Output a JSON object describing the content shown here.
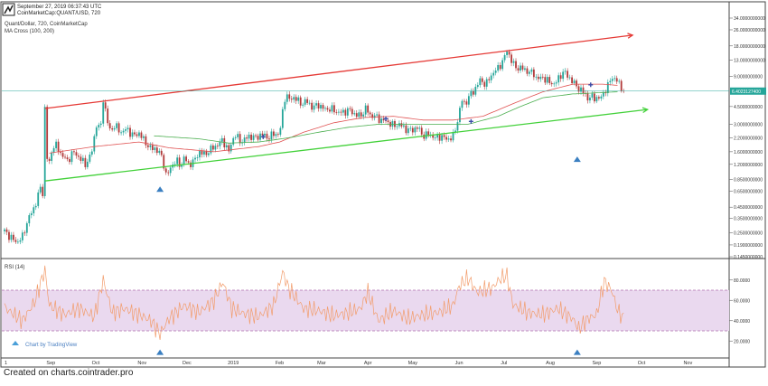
{
  "header": {
    "timestamp": "September 27, 2019 06:37:43 UTC",
    "symbol": "CoinMarketCap:QUANT/USD, 720",
    "logo_icon": "tradingview-logo-icon"
  },
  "price_pane": {
    "series_title": "Quant/Dollar, 720, CoinMarketCap",
    "indicator_title": "MA Cross (100, 200)",
    "current_price_label": "6.4023127400",
    "current_price": 6.4023,
    "y_ticks": [
      {
        "value": 34,
        "label": "34.0000000000"
      },
      {
        "value": 26,
        "label": "26.0000000000"
      },
      {
        "value": 18,
        "label": "18.0000000000"
      },
      {
        "value": 13,
        "label": "13.0000000000"
      },
      {
        "value": 9,
        "label": "9.0000000000"
      },
      {
        "value": 6.4023,
        "label": "6.4023127400"
      },
      {
        "value": 4.5,
        "label": "4.5000000000"
      },
      {
        "value": 3,
        "label": "3.0000000000"
      },
      {
        "value": 2.2,
        "label": "2.2000000000"
      },
      {
        "value": 1.6,
        "label": "1.6000000000"
      },
      {
        "value": 1.2,
        "label": "1.2000000000"
      },
      {
        "value": 0.85,
        "label": "0.8500000000"
      },
      {
        "value": 0.65,
        "label": "0.6500000000"
      },
      {
        "value": 0.45,
        "label": "0.4500000000"
      },
      {
        "value": 0.35,
        "label": "0.3500000000"
      },
      {
        "value": 0.25,
        "label": "0.2500000000"
      },
      {
        "value": 0.19,
        "label": "0.1900000000"
      },
      {
        "value": 0.145,
        "label": "0.1450000000"
      }
    ]
  },
  "rsi_pane": {
    "title": "RSI (14)",
    "watermark": "Chart by TradingView",
    "y_ticks": [
      {
        "value": 80,
        "label": "80.0000"
      },
      {
        "value": 60,
        "label": "60.0000"
      },
      {
        "value": 40,
        "label": "40.0000"
      },
      {
        "value": 20,
        "label": "20.0000"
      }
    ],
    "overbought": 70,
    "oversold": 30
  },
  "x_axis": {
    "labels": [
      {
        "day": 0,
        "label": "1"
      },
      {
        "day": 31,
        "label": "Sep"
      },
      {
        "day": 61,
        "label": "Oct"
      },
      {
        "day": 92,
        "label": "Nov"
      },
      {
        "day": 122,
        "label": "Dec"
      },
      {
        "day": 153,
        "label": "2019"
      },
      {
        "day": 184,
        "label": "Feb"
      },
      {
        "day": 212,
        "label": "Mar"
      },
      {
        "day": 243,
        "label": "Apr"
      },
      {
        "day": 273,
        "label": "May"
      },
      {
        "day": 304,
        "label": "Jun"
      },
      {
        "day": 334,
        "label": "Jul"
      },
      {
        "day": 365,
        "label": "Aug"
      },
      {
        "day": 396,
        "label": "Sep"
      },
      {
        "day": 426,
        "label": "Oct"
      },
      {
        "day": 457,
        "label": "Nov"
      }
    ]
  },
  "footer": "Created on charts.cointrader.pro",
  "colors": {
    "up": "#26a69a",
    "down": "#b23a3a",
    "ma100": "#e05252",
    "ma200": "#4caf50",
    "resistance": "#e53935",
    "support": "#43d13a",
    "rsi": "#f29c6b",
    "rsi_band": "#ead9ef",
    "marker": "#3d4ea8",
    "triangle": "#3a7fc1",
    "price_line": "#26a69a"
  },
  "chart_data": {
    "type": "candlestick",
    "x_unit": "days from Aug 1 2018",
    "price_scale": "log",
    "price_path": [
      [
        0,
        0.26
      ],
      [
        8,
        0.2
      ],
      [
        12,
        0.23
      ],
      [
        16,
        0.35
      ],
      [
        20,
        0.45
      ],
      [
        24,
        0.7
      ],
      [
        26,
        0.6
      ],
      [
        27,
        4.3
      ],
      [
        29,
        0.95
      ],
      [
        31,
        1.6
      ],
      [
        34,
        1.9
      ],
      [
        38,
        1.5
      ],
      [
        42,
        1.3
      ],
      [
        46,
        1.6
      ],
      [
        50,
        1.4
      ],
      [
        54,
        1.2
      ],
      [
        58,
        1.5
      ],
      [
        62,
        3.3
      ],
      [
        64,
        2.4
      ],
      [
        66,
        5.4
      ],
      [
        70,
        2.6
      ],
      [
        74,
        2.9
      ],
      [
        78,
        2.5
      ],
      [
        82,
        2.7
      ],
      [
        86,
        2.3
      ],
      [
        90,
        2.45
      ],
      [
        94,
        2.0
      ],
      [
        98,
        1.7
      ],
      [
        100,
        1.75
      ],
      [
        104,
        1.55
      ],
      [
        106,
        1.3
      ],
      [
        108,
        0.95
      ],
      [
        110,
        1.0
      ],
      [
        112,
        1.2
      ],
      [
        115,
        1.3
      ],
      [
        118,
        1.15
      ],
      [
        120,
        1.4
      ],
      [
        123,
        1.2
      ],
      [
        127,
        1.3
      ],
      [
        130,
        1.6
      ],
      [
        134,
        1.5
      ],
      [
        138,
        1.7
      ],
      [
        142,
        1.85
      ],
      [
        146,
        2.1
      ],
      [
        150,
        1.6
      ],
      [
        152,
        2.0
      ],
      [
        154,
        2.4
      ],
      [
        158,
        2.0
      ],
      [
        160,
        2.1
      ],
      [
        164,
        2.3
      ],
      [
        168,
        2.2
      ],
      [
        172,
        2.4
      ],
      [
        176,
        2.2
      ],
      [
        180,
        2.4
      ],
      [
        184,
        2.4
      ],
      [
        186,
        4.0
      ],
      [
        188,
        6.2
      ],
      [
        190,
        5.2
      ],
      [
        194,
        5.6
      ],
      [
        198,
        4.8
      ],
      [
        202,
        5.1
      ],
      [
        206,
        4.4
      ],
      [
        210,
        4.7
      ],
      [
        214,
        4.2
      ],
      [
        218,
        4.3
      ],
      [
        222,
        4.0
      ],
      [
        226,
        3.9
      ],
      [
        230,
        4.2
      ],
      [
        234,
        3.8
      ],
      [
        238,
        3.6
      ],
      [
        242,
        4.4
      ],
      [
        244,
        3.7
      ],
      [
        248,
        3.6
      ],
      [
        252,
        3.3
      ],
      [
        256,
        3.2
      ],
      [
        260,
        2.9
      ],
      [
        264,
        3.0
      ],
      [
        268,
        2.7
      ],
      [
        272,
        2.6
      ],
      [
        276,
        2.8
      ],
      [
        280,
        2.3
      ],
      [
        284,
        2.4
      ],
      [
        288,
        2.2
      ],
      [
        292,
        2.3
      ],
      [
        296,
        2.1
      ],
      [
        300,
        2.3
      ],
      [
        302,
        2.8
      ],
      [
        304,
        3.9
      ],
      [
        306,
        5.2
      ],
      [
        308,
        4.7
      ],
      [
        310,
        5.5
      ],
      [
        314,
        6.5
      ],
      [
        318,
        8.2
      ],
      [
        322,
        7.5
      ],
      [
        326,
        9.5
      ],
      [
        330,
        10.8
      ],
      [
        334,
        13.4
      ],
      [
        336,
        16.2
      ],
      [
        338,
        14.0
      ],
      [
        340,
        12.0
      ],
      [
        342,
        11.0
      ],
      [
        346,
        10.8
      ],
      [
        350,
        10.0
      ],
      [
        354,
        9.6
      ],
      [
        356,
        8.4
      ],
      [
        360,
        8.8
      ],
      [
        364,
        7.9
      ],
      [
        368,
        7.5
      ],
      [
        372,
        9.3
      ],
      [
        374,
        10.0
      ],
      [
        378,
        8.6
      ],
      [
        382,
        7.3
      ],
      [
        386,
        6.4
      ],
      [
        388,
        6.1
      ],
      [
        390,
        5.4
      ],
      [
        392,
        5.6
      ],
      [
        396,
        5.5
      ],
      [
        398,
        5.3
      ],
      [
        401,
        6.3
      ],
      [
        404,
        7.4
      ],
      [
        406,
        9.0
      ],
      [
        408,
        8.4
      ],
      [
        410,
        8.0
      ],
      [
        412,
        7.2
      ],
      [
        414,
        6.4
      ]
    ],
    "ma100": [
      [
        30,
        1.55
      ],
      [
        60,
        1.8
      ],
      [
        90,
        2.0
      ],
      [
        110,
        1.75
      ],
      [
        140,
        1.6
      ],
      [
        170,
        1.8
      ],
      [
        184,
        2.0
      ],
      [
        200,
        2.5
      ],
      [
        220,
        3.1
      ],
      [
        240,
        3.5
      ],
      [
        260,
        3.6
      ],
      [
        280,
        3.3
      ],
      [
        300,
        3.3
      ],
      [
        320,
        3.6
      ],
      [
        340,
        4.8
      ],
      [
        360,
        6.3
      ],
      [
        380,
        7.5
      ],
      [
        400,
        7.5
      ],
      [
        410,
        7.3
      ]
    ],
    "ma200": [
      [
        100,
        2.3
      ],
      [
        130,
        2.15
      ],
      [
        150,
        1.95
      ],
      [
        170,
        2.0
      ],
      [
        190,
        2.2
      ],
      [
        210,
        2.5
      ],
      [
        230,
        2.8
      ],
      [
        250,
        3.0
      ],
      [
        270,
        3.0
      ],
      [
        290,
        3.0
      ],
      [
        310,
        3.0
      ],
      [
        330,
        3.6
      ],
      [
        345,
        4.5
      ],
      [
        360,
        5.5
      ],
      [
        380,
        6.0
      ],
      [
        400,
        6.2
      ],
      [
        410,
        6.3
      ]
    ],
    "cross_markers": [
      {
        "day": 173,
        "price": 2.25
      },
      {
        "day": 255,
        "price": 3.4
      },
      {
        "day": 312,
        "price": 3.2
      },
      {
        "day": 392,
        "price": 7.4
      }
    ],
    "trendlines": [
      {
        "name": "resistance",
        "from": {
          "day": 27,
          "price": 4.3
        },
        "to": {
          "day": 420,
          "price": 23.0
        }
      },
      {
        "name": "support",
        "from": {
          "day": 27,
          "price": 0.82
        },
        "to": {
          "day": 430,
          "price": 4.2
        }
      }
    ],
    "triangle_markers": [
      {
        "pane": "price",
        "day": 104,
        "price": 0.68
      },
      {
        "pane": "price",
        "day": 383,
        "price": 1.35
      },
      {
        "pane": "rsi",
        "day": 104,
        "value": 9
      },
      {
        "pane": "rsi",
        "day": 383,
        "value": 9
      }
    ],
    "rsi_anchors": [
      [
        0,
        53
      ],
      [
        12,
        40
      ],
      [
        20,
        58
      ],
      [
        27,
        90
      ],
      [
        30,
        55
      ],
      [
        40,
        46
      ],
      [
        50,
        52
      ],
      [
        60,
        44
      ],
      [
        66,
        80
      ],
      [
        72,
        48
      ],
      [
        80,
        52
      ],
      [
        90,
        46
      ],
      [
        98,
        40
      ],
      [
        104,
        27
      ],
      [
        110,
        42
      ],
      [
        120,
        55
      ],
      [
        130,
        48
      ],
      [
        140,
        60
      ],
      [
        146,
        78
      ],
      [
        152,
        52
      ],
      [
        160,
        47
      ],
      [
        170,
        44
      ],
      [
        180,
        55
      ],
      [
        186,
        88
      ],
      [
        190,
        72
      ],
      [
        200,
        52
      ],
      [
        210,
        50
      ],
      [
        220,
        45
      ],
      [
        230,
        48
      ],
      [
        238,
        52
      ],
      [
        243,
        68
      ],
      [
        250,
        40
      ],
      [
        260,
        50
      ],
      [
        270,
        42
      ],
      [
        280,
        46
      ],
      [
        290,
        48
      ],
      [
        300,
        55
      ],
      [
        304,
        74
      ],
      [
        310,
        82
      ],
      [
        316,
        68
      ],
      [
        326,
        72
      ],
      [
        332,
        82
      ],
      [
        336,
        84
      ],
      [
        340,
        56
      ],
      [
        350,
        48
      ],
      [
        360,
        46
      ],
      [
        370,
        52
      ],
      [
        380,
        42
      ],
      [
        384,
        32
      ],
      [
        390,
        42
      ],
      [
        396,
        46
      ],
      [
        401,
        79
      ],
      [
        406,
        70
      ],
      [
        410,
        50
      ],
      [
        414,
        42
      ]
    ]
  }
}
